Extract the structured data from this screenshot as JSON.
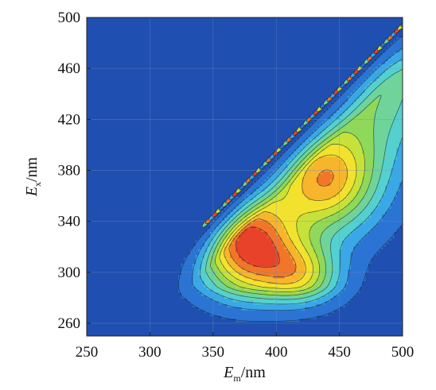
{
  "chart_data": {
    "type": "heatmap",
    "subtype": "filled-contour (excitation-emission matrix)",
    "title": "",
    "xlabel": {
      "main": "E",
      "sub": "m",
      "unit": "/nm"
    },
    "ylabel": {
      "main": "E",
      "sub": "x",
      "unit": "/nm"
    },
    "xlim": [
      250,
      500
    ],
    "ylim": [
      250,
      500
    ],
    "x_ticks": [
      250,
      300,
      350,
      400,
      450,
      500
    ],
    "y_ticks": [
      260,
      300,
      340,
      380,
      420,
      460,
      500
    ],
    "grid": true,
    "legend": "none",
    "colormap": [
      "#1f4fb0",
      "#2b74d4",
      "#3aa8e6",
      "#55d0d0",
      "#6fd49a",
      "#8fd85a",
      "#c6e23a",
      "#f2e22e",
      "#f7b52c",
      "#f2762a",
      "#e8422a"
    ],
    "background_color": "#1f4fb0",
    "peaks": [
      {
        "em": 375,
        "ex": 325,
        "level": "maximum"
      },
      {
        "em": 435,
        "ex": 375,
        "level": "high"
      },
      {
        "em": 418,
        "ex": 300,
        "level": "high"
      }
    ],
    "rayleigh_scatter_band": {
      "from_em": 340,
      "to_em": 500,
      "relation": "ex ≈ em"
    }
  }
}
